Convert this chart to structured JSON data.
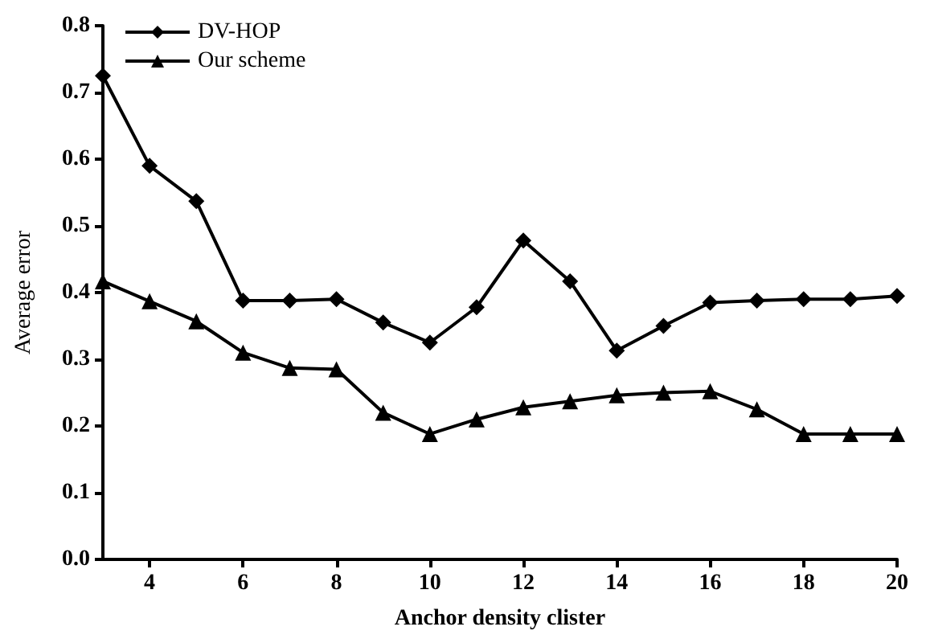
{
  "chart_data": {
    "type": "line",
    "xlabel": "Anchor density clister",
    "ylabel": "Average error",
    "x": [
      3,
      4,
      5,
      6,
      7,
      8,
      9,
      10,
      11,
      12,
      13,
      14,
      15,
      16,
      17,
      18,
      19,
      20
    ],
    "series": [
      {
        "name": "DV-HOP",
        "color": "#000000",
        "marker": "diamond",
        "values": [
          0.725,
          0.59,
          0.537,
          0.388,
          0.388,
          0.39,
          0.355,
          0.325,
          0.378,
          0.478,
          0.417,
          0.313,
          0.35,
          0.385,
          0.388,
          0.39,
          0.39,
          0.395
        ]
      },
      {
        "name": "Our scheme",
        "color": "#000000",
        "marker": "triangle",
        "values": [
          0.417,
          0.387,
          0.357,
          0.31,
          0.287,
          0.285,
          0.22,
          0.188,
          0.21,
          0.228,
          0.237,
          0.246,
          0.25,
          0.252,
          0.225,
          0.188,
          0.188,
          0.188
        ]
      }
    ],
    "xlim": [
      3,
      20
    ],
    "xticks": [
      4,
      6,
      8,
      10,
      12,
      14,
      16,
      18,
      20
    ],
    "ylim": [
      0,
      0.8
    ],
    "yticks": [
      {
        "value": 0,
        "label": "0.0"
      },
      0.1,
      0.2,
      0.3,
      0.4,
      0.5,
      0.6,
      0.7,
      0.8
    ],
    "grid": false,
    "legend": "top left",
    "line_style": "solid"
  }
}
